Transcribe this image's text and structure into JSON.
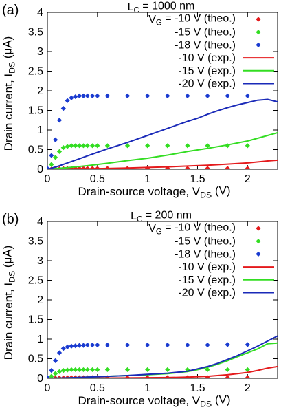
{
  "chart_data": [
    {
      "type": "scatter",
      "panel_label": "(a)",
      "title": "L_C = 1000 nm",
      "xlabel": "Drain-source voltage, V_DS (V)",
      "ylabel": "Drain current, I_DS (μA)",
      "xlim": [
        0,
        2.3
      ],
      "ylim": [
        0,
        4
      ],
      "xticks": [
        0,
        0.5,
        1,
        1.5,
        2
      ],
      "yticks": [
        0,
        0.5,
        1,
        1.5,
        2,
        2.5,
        3,
        3.5,
        4
      ],
      "legend_position": "top-right",
      "series": [
        {
          "name": "V_G = -10 V (theo.)",
          "kind": "points",
          "color": "#e41a1c",
          "x": [
            0.0,
            0.04,
            0.08,
            0.12,
            0.16,
            0.2,
            0.24,
            0.28,
            0.32,
            0.36,
            0.4,
            0.45,
            0.5,
            0.6,
            0.8,
            1.0,
            1.2,
            1.4,
            1.6,
            1.8,
            2.0
          ],
          "y": [
            0.0,
            0.005,
            0.01,
            0.012,
            0.015,
            0.017,
            0.018,
            0.019,
            0.02,
            0.02,
            0.02,
            0.02,
            0.02,
            0.02,
            0.02,
            0.02,
            0.02,
            0.02,
            0.02,
            0.02,
            0.02
          ]
        },
        {
          "name": "-15 V (theo.)",
          "kind": "points",
          "color": "#33dd22",
          "x": [
            0.0,
            0.04,
            0.08,
            0.12,
            0.16,
            0.2,
            0.24,
            0.28,
            0.32,
            0.36,
            0.4,
            0.45,
            0.5,
            0.6,
            0.8,
            1.0,
            1.2,
            1.4,
            1.6,
            1.8,
            2.0
          ],
          "y": [
            0.0,
            0.12,
            0.3,
            0.45,
            0.55,
            0.58,
            0.6,
            0.6,
            0.6,
            0.6,
            0.6,
            0.6,
            0.6,
            0.6,
            0.6,
            0.6,
            0.6,
            0.6,
            0.6,
            0.6,
            0.6
          ]
        },
        {
          "name": "-18 V (theo.)",
          "kind": "points",
          "color": "#1a3bd0",
          "x": [
            0.0,
            0.04,
            0.08,
            0.12,
            0.16,
            0.2,
            0.24,
            0.28,
            0.32,
            0.36,
            0.4,
            0.45,
            0.5,
            0.6,
            0.8,
            1.0,
            1.2,
            1.4,
            1.6,
            1.8,
            2.0
          ],
          "y": [
            0.02,
            0.35,
            0.75,
            1.25,
            1.55,
            1.75,
            1.82,
            1.85,
            1.87,
            1.87,
            1.87,
            1.87,
            1.87,
            1.87,
            1.87,
            1.87,
            1.87,
            1.87,
            1.87,
            1.87,
            1.87
          ]
        },
        {
          "name": "-10 V (exp.)",
          "kind": "line",
          "color": "#e41a1c",
          "x": [
            0,
            0.2,
            0.4,
            0.6,
            0.8,
            1.0,
            1.2,
            1.4,
            1.6,
            1.8,
            2.0,
            2.2,
            2.3
          ],
          "y": [
            0,
            0.004,
            0.01,
            0.02,
            0.03,
            0.045,
            0.06,
            0.08,
            0.1,
            0.13,
            0.16,
            0.21,
            0.23
          ]
        },
        {
          "name": "-15 V (exp.)",
          "kind": "line",
          "color": "#33dd22",
          "x": [
            0,
            0.2,
            0.4,
            0.6,
            0.8,
            1.0,
            1.2,
            1.4,
            1.6,
            1.8,
            2.0,
            2.2,
            2.3
          ],
          "y": [
            0,
            0.04,
            0.09,
            0.15,
            0.22,
            0.28,
            0.36,
            0.45,
            0.53,
            0.62,
            0.72,
            0.86,
            0.93
          ]
        },
        {
          "name": "-20 V (exp.)",
          "kind": "line",
          "color": "#1a2ab8",
          "x": [
            0,
            0.1,
            0.2,
            0.3,
            0.4,
            0.5,
            0.6,
            0.7,
            0.8,
            0.9,
            1.0,
            1.1,
            1.2,
            1.3,
            1.4,
            1.5,
            1.6,
            1.7,
            1.8,
            1.9,
            2.0,
            2.1,
            2.2,
            2.3
          ],
          "y": [
            0,
            0.07,
            0.16,
            0.25,
            0.34,
            0.43,
            0.52,
            0.6,
            0.68,
            0.77,
            0.86,
            0.95,
            1.04,
            1.13,
            1.22,
            1.3,
            1.4,
            1.49,
            1.57,
            1.64,
            1.7,
            1.76,
            1.78,
            1.72
          ]
        }
      ]
    },
    {
      "type": "scatter",
      "panel_label": "(b)",
      "title": "L_C = 200 nm",
      "xlabel": "Drain-source voltage, V_DS (V)",
      "ylabel": "Drain current, I_DS (μA)",
      "xlim": [
        0,
        2.3
      ],
      "ylim": [
        0,
        4
      ],
      "xticks": [
        0,
        0.5,
        1,
        1.5,
        2
      ],
      "yticks": [
        0,
        0.5,
        1,
        1.5,
        2,
        2.5,
        3,
        3.5,
        4
      ],
      "legend_position": "top-right",
      "series": [
        {
          "name": "V_G = -10 V (theo.)",
          "kind": "points",
          "color": "#e41a1c",
          "x": [
            0.0,
            0.04,
            0.08,
            0.12,
            0.16,
            0.2,
            0.24,
            0.28,
            0.32,
            0.36,
            0.4,
            0.45,
            0.5,
            0.6,
            0.8,
            1.0,
            1.2,
            1.4,
            1.6,
            1.8,
            2.0
          ],
          "y": [
            0.0,
            0.005,
            0.008,
            0.01,
            0.012,
            0.014,
            0.015,
            0.015,
            0.015,
            0.015,
            0.015,
            0.015,
            0.015,
            0.015,
            0.015,
            0.015,
            0.015,
            0.015,
            0.015,
            0.015,
            0.015
          ]
        },
        {
          "name": "-15 V (theo.)",
          "kind": "points",
          "color": "#33dd22",
          "x": [
            0.0,
            0.04,
            0.08,
            0.12,
            0.16,
            0.2,
            0.24,
            0.28,
            0.32,
            0.36,
            0.4,
            0.45,
            0.5,
            0.6,
            0.8,
            1.0,
            1.2,
            1.4,
            1.6,
            1.8,
            2.0
          ],
          "y": [
            0.0,
            0.05,
            0.12,
            0.17,
            0.2,
            0.21,
            0.22,
            0.22,
            0.22,
            0.22,
            0.22,
            0.22,
            0.22,
            0.22,
            0.22,
            0.22,
            0.22,
            0.22,
            0.22,
            0.22,
            0.22
          ]
        },
        {
          "name": "-18 V (theo.)",
          "kind": "points",
          "color": "#1a3bd0",
          "x": [
            0.0,
            0.04,
            0.08,
            0.12,
            0.16,
            0.2,
            0.24,
            0.28,
            0.32,
            0.36,
            0.4,
            0.45,
            0.5,
            0.6,
            0.8,
            1.0,
            1.2,
            1.4,
            1.6,
            1.8,
            2.0
          ],
          "y": [
            0.02,
            0.2,
            0.45,
            0.65,
            0.76,
            0.8,
            0.82,
            0.83,
            0.84,
            0.84,
            0.85,
            0.85,
            0.85,
            0.85,
            0.85,
            0.85,
            0.85,
            0.85,
            0.85,
            0.86,
            0.86
          ]
        },
        {
          "name": "-10 V (exp.)",
          "kind": "line",
          "color": "#e41a1c",
          "x": [
            0,
            0.4,
            0.8,
            1.0,
            1.2,
            1.4,
            1.6,
            1.7,
            1.8,
            1.9,
            2.0,
            2.1,
            2.2,
            2.3
          ],
          "y": [
            0,
            0.005,
            0.01,
            0.015,
            0.02,
            0.03,
            0.05,
            0.07,
            0.09,
            0.12,
            0.15,
            0.2,
            0.26,
            0.3
          ]
        },
        {
          "name": "-15 V (exp.)",
          "kind": "line",
          "color": "#33dd22",
          "x": [
            0,
            0.2,
            0.4,
            0.6,
            0.8,
            1.0,
            1.2,
            1.4,
            1.5,
            1.6,
            1.7,
            1.8,
            1.9,
            2.0,
            2.1,
            2.2,
            2.3
          ],
          "y": [
            0,
            0.01,
            0.03,
            0.05,
            0.07,
            0.09,
            0.12,
            0.17,
            0.22,
            0.28,
            0.36,
            0.45,
            0.55,
            0.65,
            0.75,
            0.88,
            0.9
          ]
        },
        {
          "name": "-20 V (exp.)",
          "kind": "line",
          "color": "#1a2ab8",
          "x": [
            0,
            0.2,
            0.4,
            0.6,
            0.8,
            1.0,
            1.2,
            1.4,
            1.5,
            1.6,
            1.7,
            1.8,
            1.9,
            2.0,
            2.1,
            2.2,
            2.3
          ],
          "y": [
            0,
            0.01,
            0.03,
            0.05,
            0.07,
            0.1,
            0.13,
            0.18,
            0.24,
            0.3,
            0.38,
            0.48,
            0.58,
            0.7,
            0.82,
            0.95,
            1.08
          ]
        }
      ]
    }
  ]
}
